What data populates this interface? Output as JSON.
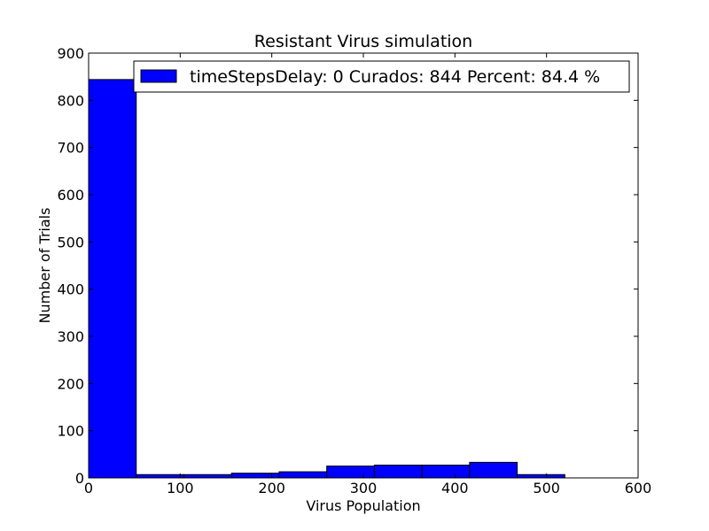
{
  "chart_data": {
    "type": "bar",
    "title": "Resistant Virus simulation",
    "xlabel": "Virus Population",
    "ylabel": "Number of Trials",
    "xlim": [
      0,
      600
    ],
    "ylim": [
      0,
      900
    ],
    "xticks": [
      0,
      100,
      200,
      300,
      400,
      500,
      600
    ],
    "yticks": [
      0,
      100,
      200,
      300,
      400,
      500,
      600,
      700,
      800,
      900
    ],
    "grid": false,
    "legend_position": "top-right",
    "bar_color": "#0000ff",
    "series": [
      {
        "name": "timeStepsDelay: 0 Curados: 844 Percent: 84.4 %",
        "bins": [
          {
            "start": 0,
            "end": 52,
            "value": 844
          },
          {
            "start": 52,
            "end": 104,
            "value": 7
          },
          {
            "start": 104,
            "end": 156,
            "value": 7
          },
          {
            "start": 156,
            "end": 208,
            "value": 10
          },
          {
            "start": 208,
            "end": 260,
            "value": 13
          },
          {
            "start": 260,
            "end": 312,
            "value": 25
          },
          {
            "start": 312,
            "end": 364,
            "value": 27
          },
          {
            "start": 364,
            "end": 416,
            "value": 27
          },
          {
            "start": 416,
            "end": 468,
            "value": 33
          },
          {
            "start": 468,
            "end": 520,
            "value": 7
          }
        ]
      }
    ]
  }
}
